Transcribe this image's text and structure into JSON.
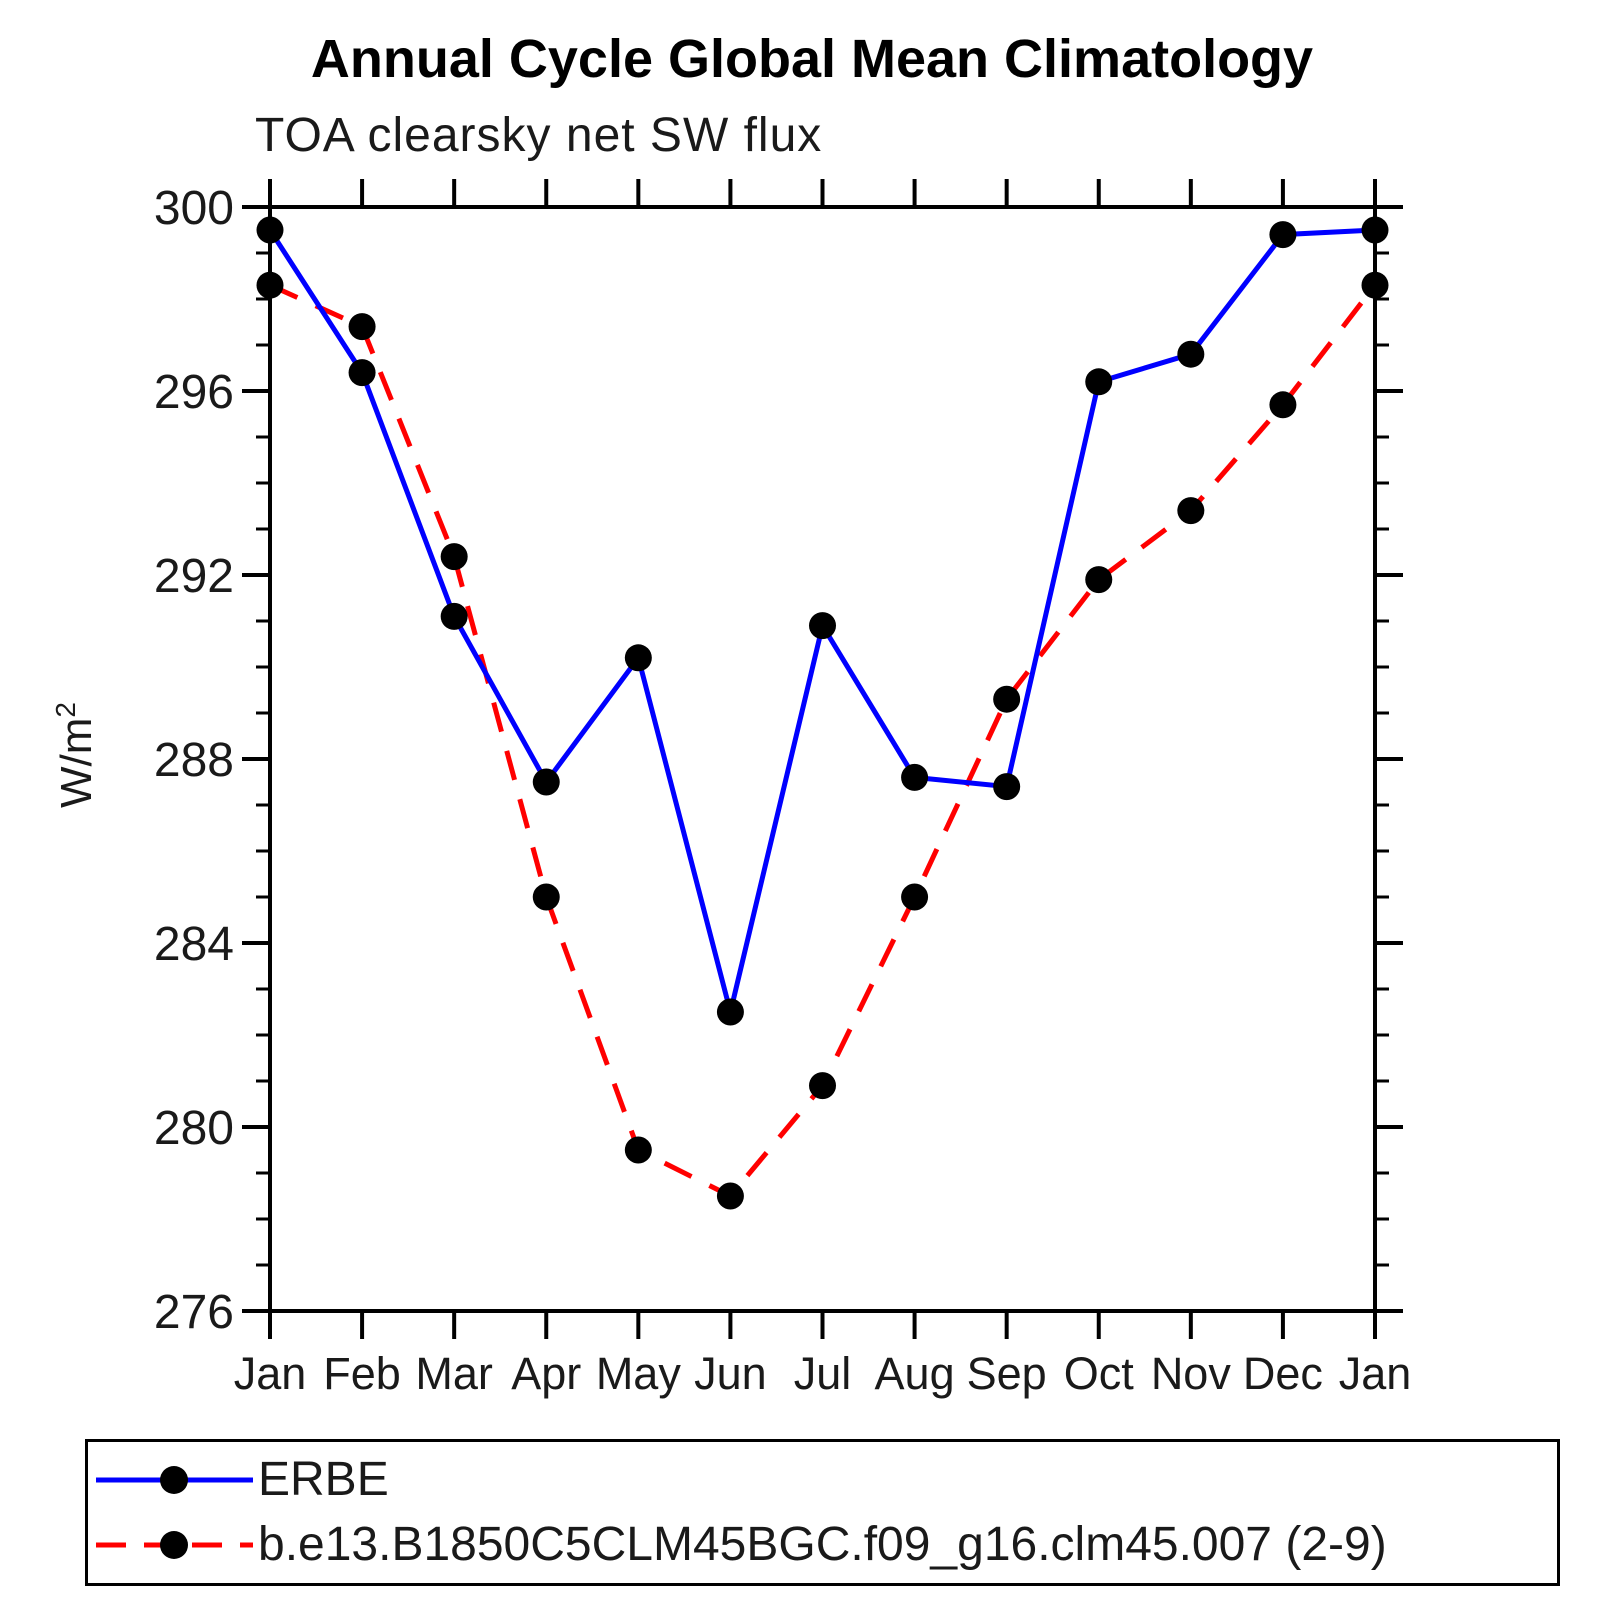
{
  "title": "Annual Cycle Global Mean Climatology",
  "subtitle": "TOA clearsky net SW flux",
  "y_axis": {
    "label": "W/m",
    "label_exponent": "2",
    "tick_labels": [
      "300",
      "296",
      "292",
      "288",
      "284",
      "280",
      "276"
    ]
  },
  "colors": {
    "erbe_line": "#0000ff",
    "model_line": "#ff0000",
    "marker": "#000000",
    "axis": "#000000"
  },
  "chart_data": {
    "type": "line",
    "categories": [
      "Jan",
      "Feb",
      "Mar",
      "Apr",
      "May",
      "Jun",
      "Jul",
      "Aug",
      "Sep",
      "Oct",
      "Nov",
      "Dec",
      "Jan"
    ],
    "series": [
      {
        "name": "ERBE",
        "color": "#0000ff",
        "style": "solid",
        "marker": "filled-circle",
        "values": [
          299.5,
          296.4,
          291.1,
          287.5,
          290.2,
          282.5,
          290.9,
          287.6,
          287.4,
          296.2,
          296.8,
          299.4,
          299.5
        ]
      },
      {
        "name": "b.e13.B1850C5CLM45BGC.f09_g16.clm45.007 (2-9)",
        "color": "#ff0000",
        "style": "dashed",
        "marker": "filled-circle",
        "values": [
          298.3,
          297.4,
          292.4,
          285.0,
          279.5,
          278.5,
          280.9,
          285.0,
          289.3,
          291.9,
          293.4,
          295.7,
          298.3
        ]
      }
    ],
    "title": "Annual Cycle Global Mean Climatology",
    "subtitle": "TOA clearsky net SW flux",
    "xlabel": "",
    "ylabel": "W/m2",
    "ylim": [
      276,
      300
    ],
    "ytick_major_step": 4,
    "ytick_minor_step": 1,
    "grid": false,
    "legend_position": "bottom"
  }
}
